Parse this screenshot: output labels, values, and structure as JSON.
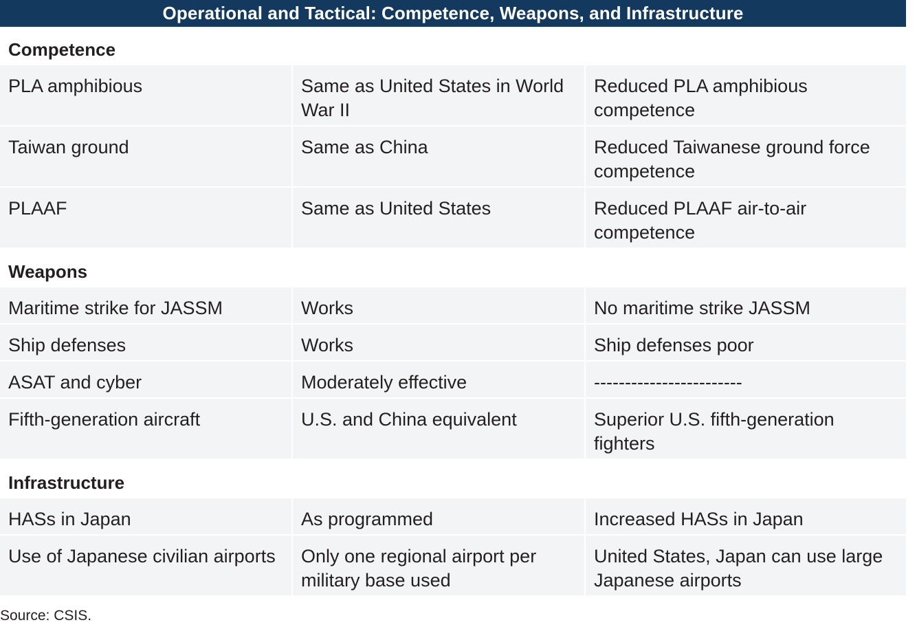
{
  "title": "Operational and Tactical: Competence, Weapons, and Infrastructure",
  "sections": [
    {
      "name": "Competence",
      "rows": [
        [
          "PLA amphibious",
          "Same as United States in World War II",
          "Reduced PLA amphibious competence"
        ],
        [
          "Taiwan ground",
          "Same as China",
          "Reduced Taiwanese ground force competence"
        ],
        [
          "PLAAF",
          "Same as United States",
          "Reduced PLAAF air-to-air competence"
        ]
      ]
    },
    {
      "name": "Weapons",
      "rows": [
        [
          "Maritime strike for JASSM",
          "Works",
          "No maritime strike JASSM"
        ],
        [
          "Ship defenses",
          "Works",
          "Ship defenses poor"
        ],
        [
          "ASAT and cyber",
          "Moderately effective",
          "------------------------"
        ],
        [
          "Fifth-generation aircraft",
          "U.S. and China equivalent",
          "Superior U.S. fifth-generation fighters"
        ]
      ]
    },
    {
      "name": "Infrastructure",
      "rows": [
        [
          "HASs in Japan",
          "As programmed",
          "Increased HASs in Japan"
        ],
        [
          "Use of Japanese civilian airports",
          "Only one regional airport per military base used",
          "United States, Japan can use large Japanese airports"
        ]
      ]
    }
  ],
  "source": "Source: CSIS."
}
